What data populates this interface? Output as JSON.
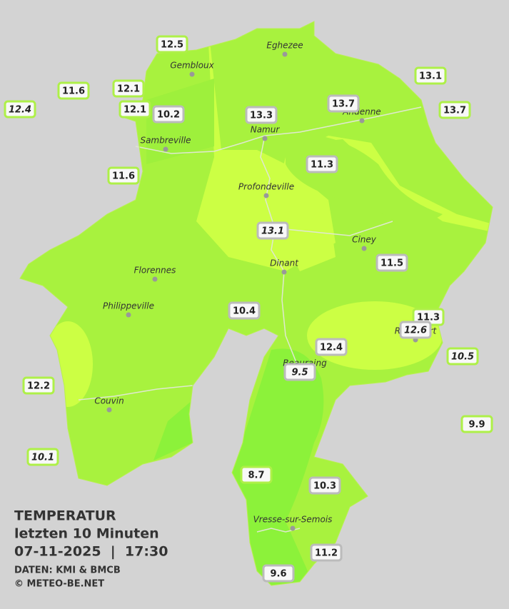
{
  "title": [
    "TEMPERATUR",
    "letzten 10 Minuten",
    "07-11-2025  |  17:30"
  ],
  "credits": [
    "DATEN: KMI & BMCB",
    "© METEO-BE.NET"
  ],
  "towns": [
    "Eghezee",
    "Gembloux",
    "Andenne",
    "Namur",
    "Sambreville",
    "Profondeville",
    "Ciney",
    "Dinant",
    "Florennes",
    "Philippeville",
    "Beauraing",
    "Rochefort",
    "Couvin",
    "Vresse-sur-Semois"
  ],
  "stations": [
    {
      "value": 12.5
    },
    {
      "value": 11.6
    },
    {
      "value": 12.1
    },
    {
      "value": 12.1
    },
    {
      "value": 10.2
    },
    {
      "value": 12.4,
      "italic": true
    },
    {
      "value": 13.3
    },
    {
      "value": 13.7
    },
    {
      "value": 13.1
    },
    {
      "value": 13.7
    },
    {
      "value": 11.6
    },
    {
      "value": 11.3
    },
    {
      "value": 13.1,
      "italic": true
    },
    {
      "value": 11.5
    },
    {
      "value": 10.4
    },
    {
      "value": 11.3
    },
    {
      "value": 12.6,
      "italic": true
    },
    {
      "value": 12.4
    },
    {
      "value": 10.5,
      "italic": true
    },
    {
      "value": 9.5,
      "italic": true
    },
    {
      "value": 12.2
    },
    {
      "value": 9.9
    },
    {
      "value": 10.1,
      "italic": true
    },
    {
      "value": 8.7
    },
    {
      "value": 10.3
    },
    {
      "value": 11.2
    },
    {
      "value": 9.6
    }
  ]
}
